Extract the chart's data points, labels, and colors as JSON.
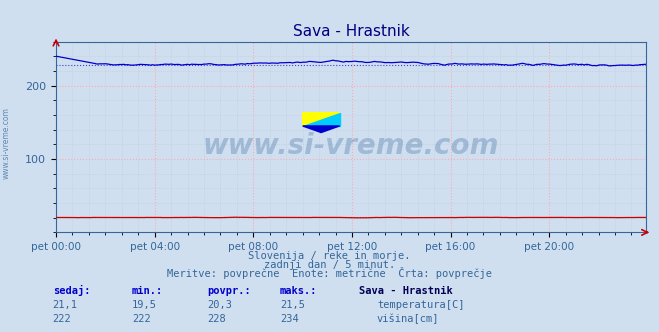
{
  "title": "Sava - Hrastnik",
  "bg_color": "#d0dff0",
  "plot_bg_color": "#d0dff0",
  "grid_color_major": "#ffaaaa",
  "grid_color_minor": "#bbccdd",
  "x_labels": [
    "pet 00:00",
    "pet 04:00",
    "pet 08:00",
    "pet 12:00",
    "pet 16:00",
    "pet 20:00"
  ],
  "x_ticks": [
    0,
    48,
    96,
    144,
    192,
    240
  ],
  "x_max": 287,
  "y_min": 0,
  "y_max": 260,
  "y_ticks": [
    100,
    200
  ],
  "temp_value": "21,1",
  "temp_min": "19,5",
  "temp_avg": "20,3",
  "temp_max": "21,5",
  "temp_avg_val": 20.3,
  "height_value": "222",
  "height_min": "222",
  "height_avg": "228",
  "height_max": "234",
  "height_avg_val": 228,
  "temp_color": "#cc0000",
  "height_color": "#0000cc",
  "watermark": "www.si-vreme.com",
  "subtitle1": "Slovenija / reke in morje.",
  "subtitle2": "zadnji dan / 5 minut.",
  "subtitle3": "Meritve: povprečne  Enote: metrične  Črta: povprečje",
  "label_sedaj": "sedaj:",
  "label_min": "min.:",
  "label_povpr": "povpr.:",
  "label_maks": "maks.:",
  "label_station": "Sava - Hrastnik",
  "label_temp": "temperatura[C]",
  "label_height": "višina[cm]",
  "n_points": 288
}
